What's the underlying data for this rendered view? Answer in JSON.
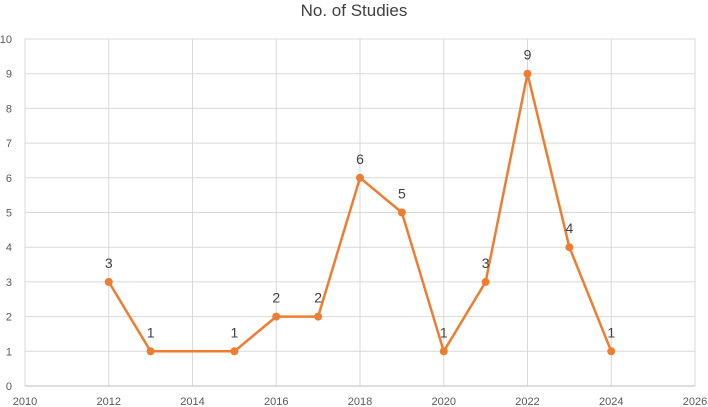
{
  "chart_data": {
    "type": "line",
    "title": "No. of Studies",
    "xlabel": "",
    "ylabel": "",
    "xlim": [
      2010,
      2026
    ],
    "ylim": [
      0,
      10
    ],
    "x_ticks": [
      2010,
      2012,
      2014,
      2016,
      2018,
      2020,
      2022,
      2024,
      2026
    ],
    "y_ticks": [
      0,
      1,
      2,
      3,
      4,
      5,
      6,
      7,
      8,
      9,
      10
    ],
    "grid": true,
    "legend": "none",
    "series": [
      {
        "color": "#ed7d31",
        "x": [
          2012,
          2013,
          2015,
          2016,
          2017,
          2018,
          2019,
          2020,
          2021,
          2022,
          2023,
          2024
        ],
        "values": [
          3,
          1,
          1,
          2,
          2,
          6,
          5,
          1,
          3,
          9,
          4,
          1
        ],
        "data_labels": [
          3,
          1,
          1,
          2,
          2,
          6,
          5,
          1,
          3,
          9,
          4,
          1
        ]
      }
    ]
  }
}
